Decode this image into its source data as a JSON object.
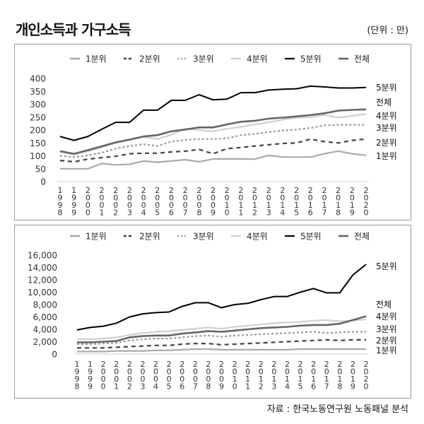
{
  "header": {
    "title": "개인소득과 가구소득",
    "unit": "(단위 : 만)"
  },
  "footer": {
    "source": "자료 : 한국노동연구원 노동패널 분석"
  },
  "chart_data": [
    {
      "type": "line",
      "title": "",
      "x": [
        "1998",
        "1999",
        "2000",
        "2001",
        "2002",
        "2003",
        "2004",
        "2005",
        "2006",
        "2007",
        "2008",
        "2009",
        "2010",
        "2011",
        "2012",
        "2013",
        "2014",
        "2015",
        "2016",
        "2017",
        "2018",
        "2019",
        "2020"
      ],
      "ylim": [
        0,
        400
      ],
      "yticks": [
        0,
        50,
        100,
        150,
        200,
        250,
        300,
        350,
        400
      ],
      "legend_position": "top",
      "series": [
        {
          "name": "1분위",
          "color": "#aaaaaa",
          "dash": "solid",
          "values": [
            50,
            50,
            50,
            70,
            65,
            67,
            80,
            75,
            80,
            85,
            77,
            88,
            88,
            88,
            87,
            102,
            95,
            95,
            95,
            108,
            118,
            108,
            102
          ]
        },
        {
          "name": "2분위",
          "color": "#444444",
          "dash": "dashed",
          "values": [
            82,
            77,
            87,
            93,
            98,
            108,
            110,
            110,
            115,
            118,
            125,
            108,
            128,
            132,
            138,
            143,
            148,
            150,
            165,
            155,
            150,
            160,
            165
          ]
        },
        {
          "name": "3분위",
          "color": "#999999",
          "dash": "dotted",
          "values": [
            100,
            95,
            102,
            112,
            128,
            138,
            145,
            138,
            155,
            162,
            165,
            165,
            168,
            180,
            185,
            192,
            198,
            202,
            208,
            218,
            220,
            220,
            220
          ]
        },
        {
          "name": "4분위",
          "color": "#d0d0d0",
          "dash": "solid",
          "values": [
            115,
            105,
            117,
            133,
            150,
            162,
            173,
            165,
            182,
            205,
            200,
            195,
            205,
            212,
            222,
            230,
            240,
            248,
            250,
            258,
            248,
            255,
            262
          ]
        },
        {
          "name": "5분위",
          "color": "#000000",
          "dash": "solid",
          "values": [
            175,
            160,
            175,
            203,
            230,
            230,
            277,
            277,
            315,
            315,
            337,
            317,
            320,
            345,
            345,
            355,
            358,
            360,
            370,
            367,
            363,
            363,
            365
          ]
        },
        {
          "name": "전체",
          "color": "#666666",
          "dash": "solid",
          "values": [
            118,
            108,
            122,
            137,
            152,
            163,
            175,
            180,
            195,
            202,
            210,
            210,
            222,
            232,
            236,
            244,
            248,
            253,
            258,
            265,
            275,
            278,
            280
          ]
        }
      ],
      "end_labels": [
        "5분위",
        "전체",
        "4분위",
        "3분위",
        "2분위",
        "1분위"
      ]
    },
    {
      "type": "line",
      "title": "",
      "x": [
        "1998",
        "1999",
        "2000",
        "2001",
        "2002",
        "2003",
        "2004",
        "2005",
        "2006",
        "2007",
        "2008",
        "2009",
        "2010",
        "2011",
        "2012",
        "2013",
        "2014",
        "2015",
        "2016",
        "2017",
        "2018",
        "2019",
        "2020"
      ],
      "ylim": [
        0,
        16000
      ],
      "yticks": [
        "0",
        "2,000",
        "4,000",
        "6,000",
        "8,000",
        "10,000",
        "12,000",
        "14,000",
        "16,000"
      ],
      "legend_position": "top",
      "series": [
        {
          "name": "1분위",
          "color": "#aaaaaa",
          "dash": "solid",
          "values": [
            400,
            400,
            400,
            500,
            500,
            500,
            600,
            600,
            700,
            800,
            800,
            700,
            700,
            700,
            700,
            700,
            700,
            800,
            800,
            800,
            800,
            800,
            800
          ]
        },
        {
          "name": "2분위",
          "color": "#444444",
          "dash": "dashed",
          "values": [
            1000,
            1000,
            1000,
            1100,
            1200,
            1300,
            1400,
            1400,
            1600,
            1700,
            1700,
            1500,
            1600,
            1700,
            1800,
            1900,
            2000,
            2100,
            2200,
            2300,
            2200,
            2300,
            2300
          ]
        },
        {
          "name": "3분위",
          "color": "#999999",
          "dash": "dotted",
          "values": [
            1600,
            1600,
            1700,
            1800,
            2200,
            2400,
            2500,
            2500,
            2700,
            2900,
            3000,
            2800,
            3000,
            3100,
            3200,
            3300,
            3400,
            3500,
            3600,
            3400,
            3500,
            3600,
            3600
          ]
        },
        {
          "name": "4분위",
          "color": "#d0d0d0",
          "dash": "solid",
          "values": [
            2400,
            2400,
            2500,
            2700,
            3100,
            3400,
            3600,
            3700,
            3900,
            4100,
            4300,
            4100,
            4400,
            4600,
            4800,
            5000,
            5100,
            5200,
            5400,
            5500,
            5300,
            5400,
            5600
          ]
        },
        {
          "name": "5분위",
          "color": "#000000",
          "dash": "solid",
          "values": [
            3900,
            4300,
            4500,
            5000,
            6000,
            6500,
            6700,
            6800,
            7700,
            8300,
            8300,
            7500,
            8000,
            8200,
            8800,
            9300,
            9300,
            10000,
            10600,
            9900,
            9900,
            12800,
            14500
          ]
        },
        {
          "name": "전체",
          "color": "#666666",
          "dash": "solid",
          "values": [
            1900,
            1900,
            2000,
            2100,
            2700,
            2900,
            3000,
            3000,
            3300,
            3500,
            3700,
            3600,
            3800,
            4000,
            4200,
            4300,
            4400,
            4600,
            4700,
            4700,
            4900,
            5500,
            6100
          ]
        }
      ],
      "end_labels": [
        "5분위",
        "전체",
        "4분위",
        "3분위",
        "2분위",
        "1분위"
      ]
    }
  ]
}
